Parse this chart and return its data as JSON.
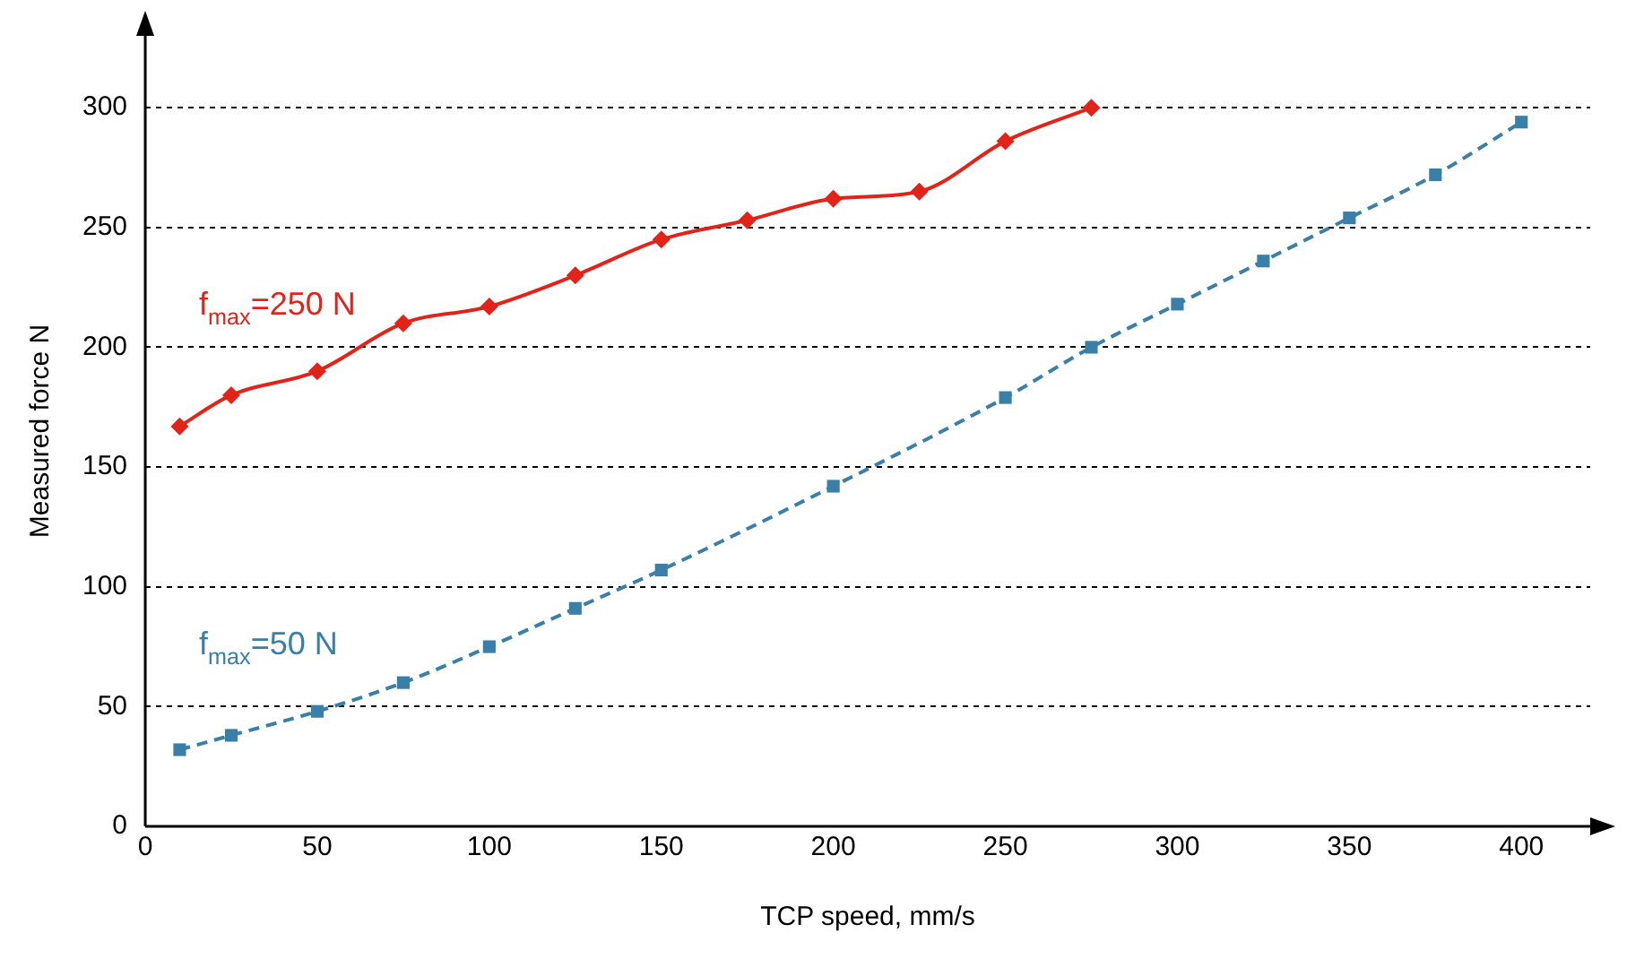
{
  "chart_data": {
    "type": "line",
    "xlabel": "TCP speed, mm/s",
    "ylabel": "Measured force N",
    "xlim": [
      0,
      420
    ],
    "ylim": [
      0,
      330
    ],
    "xticks": [
      0,
      50,
      100,
      150,
      200,
      250,
      300,
      350,
      400
    ],
    "yticks": [
      0,
      50,
      100,
      150,
      200,
      250,
      300
    ],
    "grid": "y",
    "legend": false,
    "series": [
      {
        "name": "f$_{max}$=250 N",
        "color": "#e2231a",
        "marker": "diamond",
        "line_style": "solid",
        "x": [
          10,
          25,
          50,
          75,
          100,
          125,
          150,
          175,
          200,
          225,
          250,
          275
        ],
        "values": [
          167,
          180,
          190,
          210,
          217,
          230,
          245,
          253,
          262,
          265,
          286,
          300
        ]
      },
      {
        "name": "f$_{max}$=50 N",
        "color": "#3a7fa8",
        "marker": "square",
        "line_style": "dashed",
        "x": [
          10,
          25,
          50,
          75,
          100,
          125,
          150,
          200,
          250,
          275,
          300,
          325,
          350,
          375,
          400
        ],
        "values": [
          32,
          38,
          48,
          60,
          75,
          91,
          107,
          142,
          179,
          200,
          218,
          236,
          254,
          272,
          294
        ]
      }
    ]
  }
}
